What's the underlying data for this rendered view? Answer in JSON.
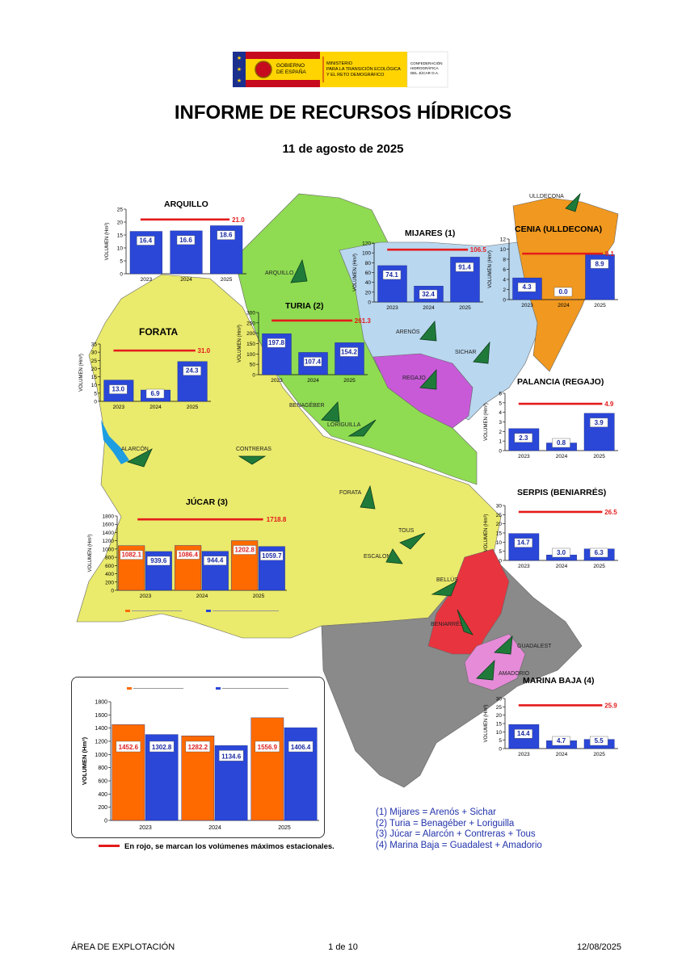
{
  "header": {
    "logo_line1": "GOBIERNO",
    "logo_line2": "DE ESPAÑA",
    "ministry_line1": "MINISTERIO",
    "ministry_line2": "PARA LA TRANSICIÓN ECOLÓGICA",
    "ministry_line3": "Y EL RETO DEMOGRÁFICO",
    "agency_line1": "CONFEDERACIÓN",
    "agency_line2": "HIDROGRÁFICA",
    "agency_line3": "DEL JÚCAR O.A."
  },
  "title": "INFORME DE RECURSOS HÍDRICOS",
  "date": "11 de agosto de 2025",
  "colors": {
    "bar_blue": "#2a47d8",
    "bar_orange": "#ff6a00",
    "max_line_red": "#e41b1b",
    "region_yellow": "#eaea6c",
    "region_green": "#8fdb52",
    "region_lightblue": "#b9d7ef",
    "region_orange": "#f0981f",
    "region_magenta": "#c85ad8",
    "region_red": "#e8343e",
    "region_pink": "#e58bd8",
    "region_gray": "#8a8a8a"
  },
  "map_labels": {
    "ulldecona": "ULLDECONA",
    "arquillo": "ARQUILLO",
    "arenos": "ARENÓS",
    "sichar": "SICHAR",
    "regajo": "REGAJO",
    "benageber": "BENAGÉBER",
    "loriguilla": "LORIGUILLA",
    "alarcon": "ALARCÓN",
    "contreras": "CONTRERAS",
    "forata": "FORATA",
    "tous": "TOUS",
    "escalona": "ESCALONA",
    "bellus": "BELLÚS",
    "beniarres": "BENIARRÉS",
    "guadalest": "GUADALEST",
    "amadorio": "AMADORIO"
  },
  "axis_label": "VOLUMEN (Hm³)",
  "main_axis_label": "VOLUMEN (Hm³)",
  "chart_data": [
    {
      "id": "arquillo",
      "type": "bar",
      "title": "ARQUILLO",
      "categories": [
        "2023",
        "2024",
        "2025"
      ],
      "values": [
        16.4,
        16.6,
        18.6
      ],
      "ylim": [
        0,
        25
      ],
      "yticks": [
        0,
        5,
        10,
        15,
        20,
        25
      ],
      "max_line": 21.0,
      "max_label": "21.0"
    },
    {
      "id": "mijares",
      "type": "bar",
      "title": "MIJARES (1)",
      "categories": [
        "2023",
        "2024",
        "2025"
      ],
      "values": [
        74.1,
        32.4,
        91.4
      ],
      "ylim": [
        0,
        120
      ],
      "yticks": [
        0,
        20,
        40,
        60,
        80,
        100,
        120
      ],
      "max_line": 106.5,
      "max_label": "106.5"
    },
    {
      "id": "cenia",
      "type": "bar",
      "title": "CENIA (ULLDECONA)",
      "categories": [
        "2023",
        "2024",
        "2025"
      ],
      "values": [
        4.3,
        0.0,
        8.9
      ],
      "ylim": [
        0,
        12
      ],
      "yticks": [
        0,
        2,
        4,
        6,
        8,
        10,
        12
      ],
      "max_line": 9.1,
      "max_label": "9.1"
    },
    {
      "id": "turia",
      "type": "bar",
      "title": "TURIA (2)",
      "categories": [
        "2023",
        "2024",
        "2025"
      ],
      "values": [
        197.8,
        107.4,
        154.2
      ],
      "ylim": [
        0,
        300
      ],
      "yticks": [
        0,
        50,
        100,
        150,
        200,
        250,
        300
      ],
      "max_line": 261.3,
      "max_label": "261.3"
    },
    {
      "id": "forata",
      "type": "bar",
      "title": "FORATA",
      "categories": [
        "2023",
        "2024",
        "2025"
      ],
      "values": [
        13.0,
        6.9,
        24.3
      ],
      "ylim": [
        0,
        35
      ],
      "yticks": [
        0,
        5,
        10,
        15,
        20,
        25,
        30,
        35
      ],
      "max_line": 31.0,
      "max_label": "31.0"
    },
    {
      "id": "palancia",
      "type": "bar",
      "title": "PALANCIA (REGAJO)",
      "categories": [
        "2023",
        "2024",
        "2025"
      ],
      "values": [
        2.3,
        0.8,
        3.9
      ],
      "ylim": [
        0,
        6
      ],
      "yticks": [
        0,
        1,
        2,
        3,
        4,
        5,
        6
      ],
      "max_line": 4.9,
      "max_label": "4.9"
    },
    {
      "id": "serpis",
      "type": "bar",
      "title": "SERPIS (BENIARRÉS)",
      "categories": [
        "2023",
        "2024",
        "2025"
      ],
      "values": [
        14.7,
        3.0,
        6.3
      ],
      "ylim": [
        0,
        30
      ],
      "yticks": [
        0,
        5,
        10,
        15,
        20,
        25,
        30
      ],
      "max_line": 26.5,
      "max_label": "26.5"
    },
    {
      "id": "marina",
      "type": "bar",
      "title": "MARINA BAJA (4)",
      "categories": [
        "2023",
        "2024",
        "2025"
      ],
      "values": [
        14.4,
        4.7,
        5.5
      ],
      "ylim": [
        0,
        30
      ],
      "yticks": [
        0,
        5,
        10,
        15,
        20,
        25,
        30
      ],
      "max_line": 25.9,
      "max_label": "25.9"
    },
    {
      "id": "jucar",
      "type": "bar",
      "title": "JÚCAR (3)",
      "categories": [
        "2023",
        "2024",
        "2025"
      ],
      "series": [
        {
          "values": [
            1082.1,
            1086.4,
            1202.8
          ]
        },
        {
          "values": [
            939.6,
            944.4,
            1059.7
          ]
        }
      ],
      "ylim": [
        0,
        1800
      ],
      "yticks": [
        0,
        200,
        400,
        600,
        800,
        1000,
        1200,
        1400,
        1600,
        1800
      ],
      "max_line": 1718.8,
      "max_label": "1718.8"
    },
    {
      "id": "total",
      "type": "bar",
      "categories": [
        "2023",
        "2024",
        "2025"
      ],
      "series": [
        {
          "values": [
            1452.6,
            1282.2,
            1556.9
          ]
        },
        {
          "values": [
            1302.8,
            1134.6,
            1406.4
          ]
        }
      ],
      "ylim": [
        0,
        1800
      ],
      "yticks": [
        0,
        200,
        400,
        600,
        800,
        1000,
        1200,
        1400,
        1600,
        1800
      ]
    }
  ],
  "notes": [
    "(1) Mijares = Arenós + Sichar",
    "(2) Turia = Benagéber + Loriguilla",
    "(3) Júcar = Alarcón + Contreras + Tous",
    "(4) Marina Baja = Guadalest + Amadorio"
  ],
  "legend_note": "En rojo, se marcan los volúmenes máximos estacionales.",
  "footer": {
    "left": "ÁREA DE EXPLOTACIÓN",
    "center": "1 de 10",
    "right": "12/08/2025"
  }
}
